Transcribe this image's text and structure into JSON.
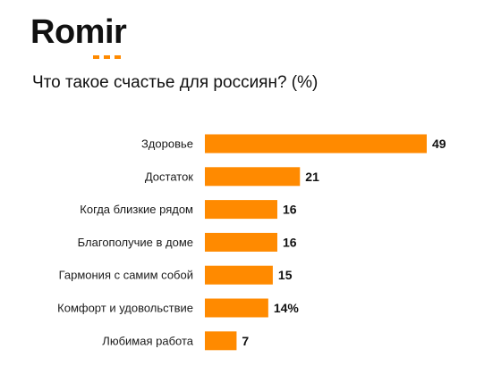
{
  "logo": {
    "text": "Romir",
    "color": "#ff8a00"
  },
  "title": "Что такое счастье для россиян? (%)",
  "chart_data": {
    "type": "bar",
    "orientation": "horizontal",
    "bar_color": "#ff8a00",
    "categories": [
      "Здоровье",
      "Достаток",
      "Когда близкие рядом",
      "Благополучие в доме",
      "Гармония с самим собой",
      "Комфорт и удовольствие",
      "Любимая работа"
    ],
    "values": [
      49,
      21,
      16,
      16,
      15,
      14,
      7
    ],
    "value_labels": [
      "49",
      "21",
      "16",
      "16",
      "15",
      "14%",
      "7"
    ],
    "xlim": [
      0,
      49
    ],
    "grid": false,
    "legend": "none"
  }
}
